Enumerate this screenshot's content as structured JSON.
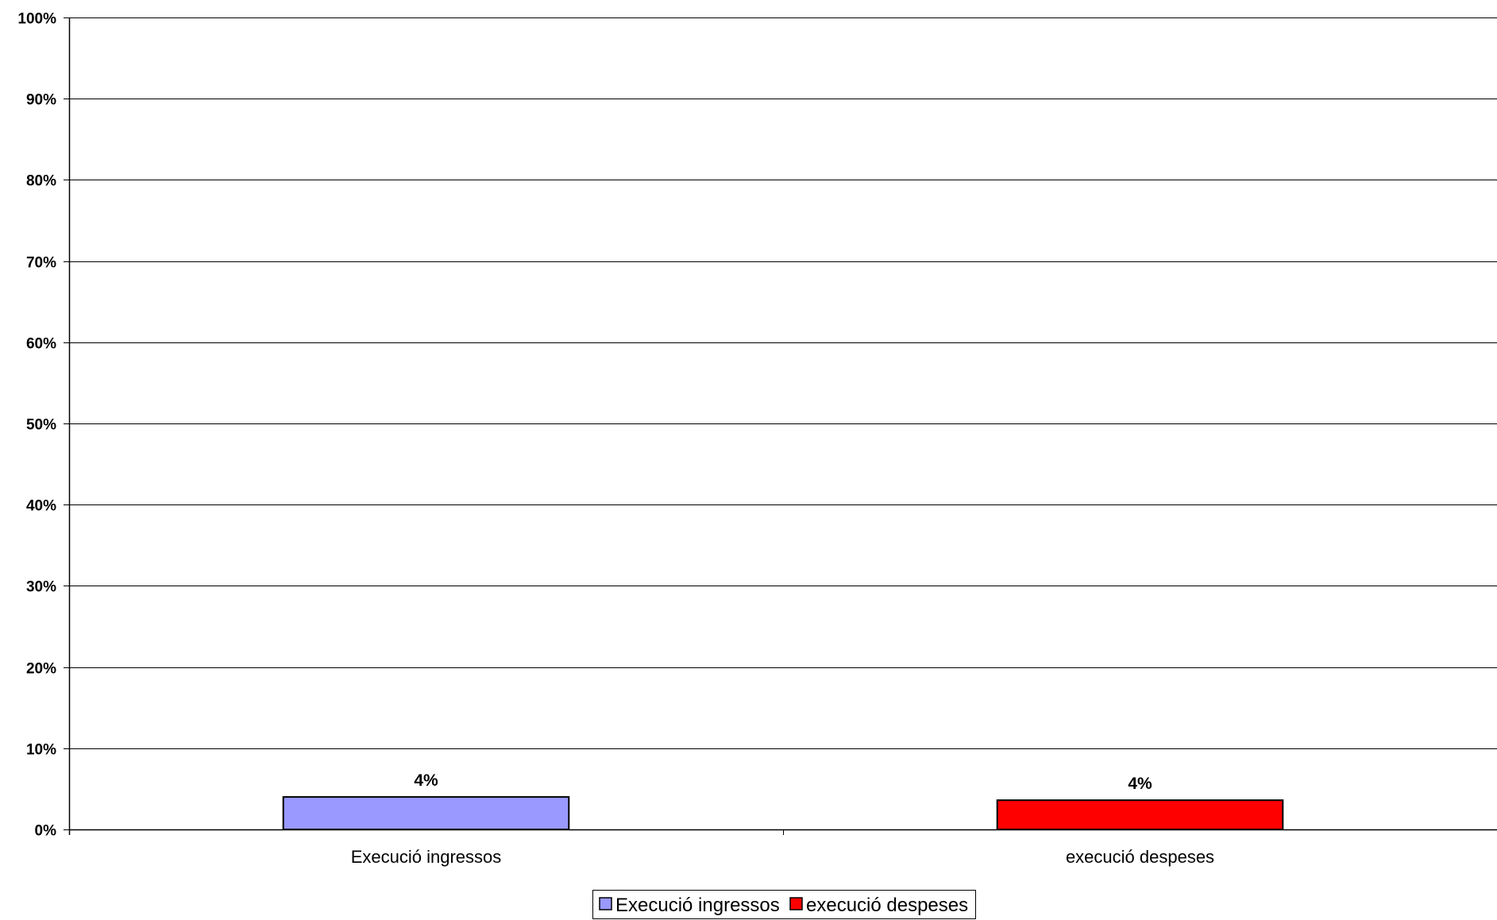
{
  "chart_data": {
    "type": "bar",
    "title": "",
    "xlabel": "",
    "ylabel": "",
    "categories": [
      "Execució ingressos",
      "execució despeses"
    ],
    "values": [
      0.04,
      0.036
    ],
    "data_labels": [
      "4%",
      "4%"
    ],
    "bar_colors": [
      "#9999FF",
      "#FF0000"
    ],
    "ylim": [
      0,
      1
    ],
    "y_ticks": [
      0,
      0.1,
      0.2,
      0.3,
      0.4,
      0.5,
      0.6,
      0.7,
      0.8,
      0.9,
      1
    ],
    "y_tick_labels": [
      "0%",
      "10%",
      "20%",
      "30%",
      "40%",
      "50%",
      "60%",
      "70%",
      "80%",
      "90%",
      "100%"
    ],
    "grid": true,
    "legend": {
      "placement": "bottom-center",
      "entries": [
        {
          "label": "Execució ingressos",
          "color": "#9999FF"
        },
        {
          "label": "execució despeses",
          "color": "#FF0000"
        }
      ]
    }
  }
}
